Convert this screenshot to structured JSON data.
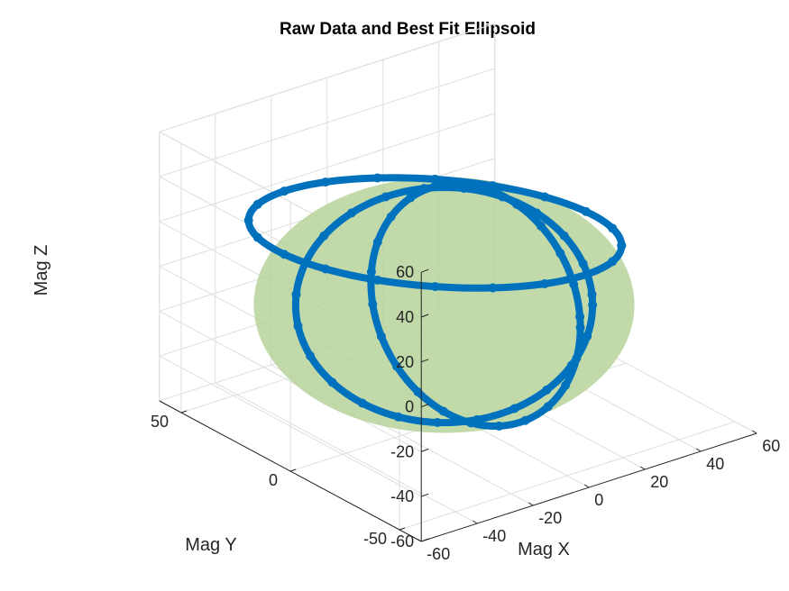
{
  "chart_data": {
    "type": "scatter3d",
    "title": "Raw Data and Best Fit Ellipsoid",
    "xlabel": "Mag X",
    "ylabel": "Mag Y",
    "zlabel": "Mag Z",
    "xlim": [
      -60,
      60
    ],
    "ylim": [
      -60,
      60
    ],
    "zlim": [
      -60,
      60
    ],
    "xticks": [
      -60,
      -40,
      -20,
      0,
      20,
      40,
      60
    ],
    "yticks": [
      -50,
      0,
      50
    ],
    "zticks": [
      -60,
      -40,
      -20,
      0,
      20,
      40,
      60
    ],
    "grid": true,
    "view": "3d-default",
    "colors": {
      "points": "#0072BD",
      "ellipsoid_fill": "#b7d49a"
    },
    "ellipsoid": {
      "center": [
        -5,
        0,
        -8
      ],
      "radii": [
        48,
        48,
        50
      ]
    },
    "series": [
      {
        "name": "",
        "points": [
          [
            -20,
            -42,
            -55
          ],
          [
            -20,
            -32,
            -32
          ],
          [
            -20,
            -10,
            -5
          ],
          [
            -20,
            18,
            18
          ],
          [
            -20,
            38,
            36
          ],
          [
            -20,
            44,
            45
          ],
          [
            5,
            0,
            35
          ],
          [
            20,
            20,
            0
          ],
          [
            20,
            15,
            -35
          ],
          [
            5,
            -15,
            -55
          ],
          [
            -30,
            30,
            48
          ],
          [
            5,
            35,
            48
          ],
          [
            30,
            20,
            50
          ],
          [
            -35,
            -30,
            0
          ],
          [
            -30,
            -25,
            30
          ],
          [
            35,
            10,
            20
          ],
          [
            40,
            -10,
            -10
          ],
          [
            35,
            -30,
            -30
          ]
        ]
      }
    ]
  }
}
